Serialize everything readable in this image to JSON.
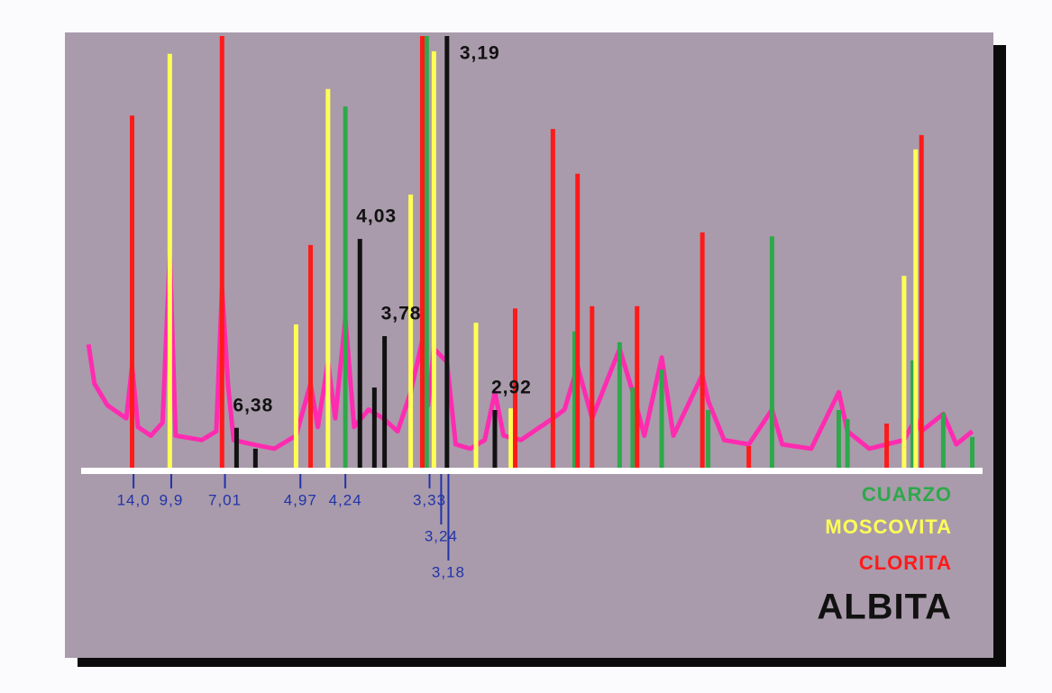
{
  "chart_data": {
    "type": "stick",
    "xlim": [
      3,
      64.5
    ],
    "ylim": [
      0,
      100
    ],
    "xticks": [
      {
        "value": 6.3,
        "label": "14,0"
      },
      {
        "value": 8.9,
        "label": "9,9"
      },
      {
        "value": 12.6,
        "label": "7,01"
      },
      {
        "value": 17.8,
        "label": "4,97"
      },
      {
        "value": 20.9,
        "label": "4,24"
      },
      {
        "value": 26.7,
        "label": "3,33"
      },
      {
        "value": 27.5,
        "label": "3,24"
      },
      {
        "value": 28.0,
        "label": "3,18"
      }
    ],
    "trace": {
      "color": "#ff2bb0",
      "x": [
        3.2,
        3.6,
        4.5,
        5.8,
        6.2,
        6.6,
        7.5,
        8.3,
        8.8,
        9.2,
        11,
        12,
        12.4,
        12.8,
        13.2,
        14.5,
        16,
        17.5,
        18.5,
        19,
        19.7,
        20.2,
        20.9,
        21.5,
        22.5,
        23.5,
        24.5,
        25.4,
        26.2,
        26.6,
        27.0,
        27.9,
        28.5,
        29.5,
        30.5,
        31.2,
        31.8,
        33,
        35.2,
        36.0,
        36.9,
        37.9,
        39.8,
        40.7,
        41.5,
        42.7,
        43.5,
        45.5,
        45.9,
        47,
        48.7,
        50.3,
        51,
        53,
        54.9,
        55.5,
        57,
        58.2,
        59.4,
        60.2,
        60.6,
        62.1,
        63,
        64.1
      ],
      "values": [
        29,
        20,
        15,
        12,
        24,
        10,
        8,
        11,
        50,
        8,
        7,
        9,
        42,
        20,
        7,
        6,
        5,
        8,
        20,
        10,
        25,
        12,
        35,
        10,
        14,
        12,
        9,
        18,
        30,
        15,
        28,
        25,
        6,
        5,
        7,
        18,
        8,
        7,
        12,
        14,
        24,
        12,
        28,
        18,
        8,
        26,
        8,
        22,
        16,
        7,
        6,
        14,
        6,
        5,
        18,
        9,
        5,
        6,
        7,
        12,
        9,
        13,
        6,
        9
      ]
    },
    "series": [
      {
        "name": "CUARZO",
        "color": "#2ea84a",
        "x": [
          20.9,
          26.5,
          36.7,
          39.8,
          40.7,
          42.7,
          45.9,
          50.3,
          54.9,
          55.5,
          60.0,
          62.1,
          64.1
        ],
        "values": [
          83.8,
          100,
          32.0,
          29.5,
          19.1,
          23.2,
          13.9,
          53.9,
          13.9,
          11.8,
          25.3,
          13.3,
          7.7
        ]
      },
      {
        "name": "MOSCOVITA",
        "color": "#ffff55",
        "x": [
          8.8,
          17.5,
          19.7,
          25.4,
          27.0,
          29.9,
          32.3,
          59.4,
          60.2
        ],
        "values": [
          95.9,
          33.6,
          87.8,
          63.5,
          96.5,
          34.0,
          14.3,
          44.8,
          73.9
        ]
      },
      {
        "name": "CLORITA",
        "color": "#ff1a1a",
        "x": [
          6.2,
          12.4,
          18.5,
          26.2,
          32.6,
          35.2,
          36.9,
          37.9,
          41.0,
          45.5,
          48.7,
          58.2,
          60.6
        ],
        "values": [
          81.7,
          100,
          51.9,
          100,
          37.3,
          78.6,
          68.3,
          37.8,
          37.8,
          54.8,
          5.6,
          10.8,
          77.2
        ]
      },
      {
        "name": "ALBITA",
        "color": "#111111",
        "x": [
          13.4,
          14.7,
          21.9,
          22.9,
          23.6,
          27.9,
          31.2
        ],
        "values": [
          9.8,
          5.0,
          53.3,
          19.1,
          30.9,
          100,
          13.9
        ],
        "peak_labels": [
          "6,38",
          null,
          "4,03",
          null,
          "3,78",
          "3,19",
          "2,92"
        ]
      }
    ]
  }
}
